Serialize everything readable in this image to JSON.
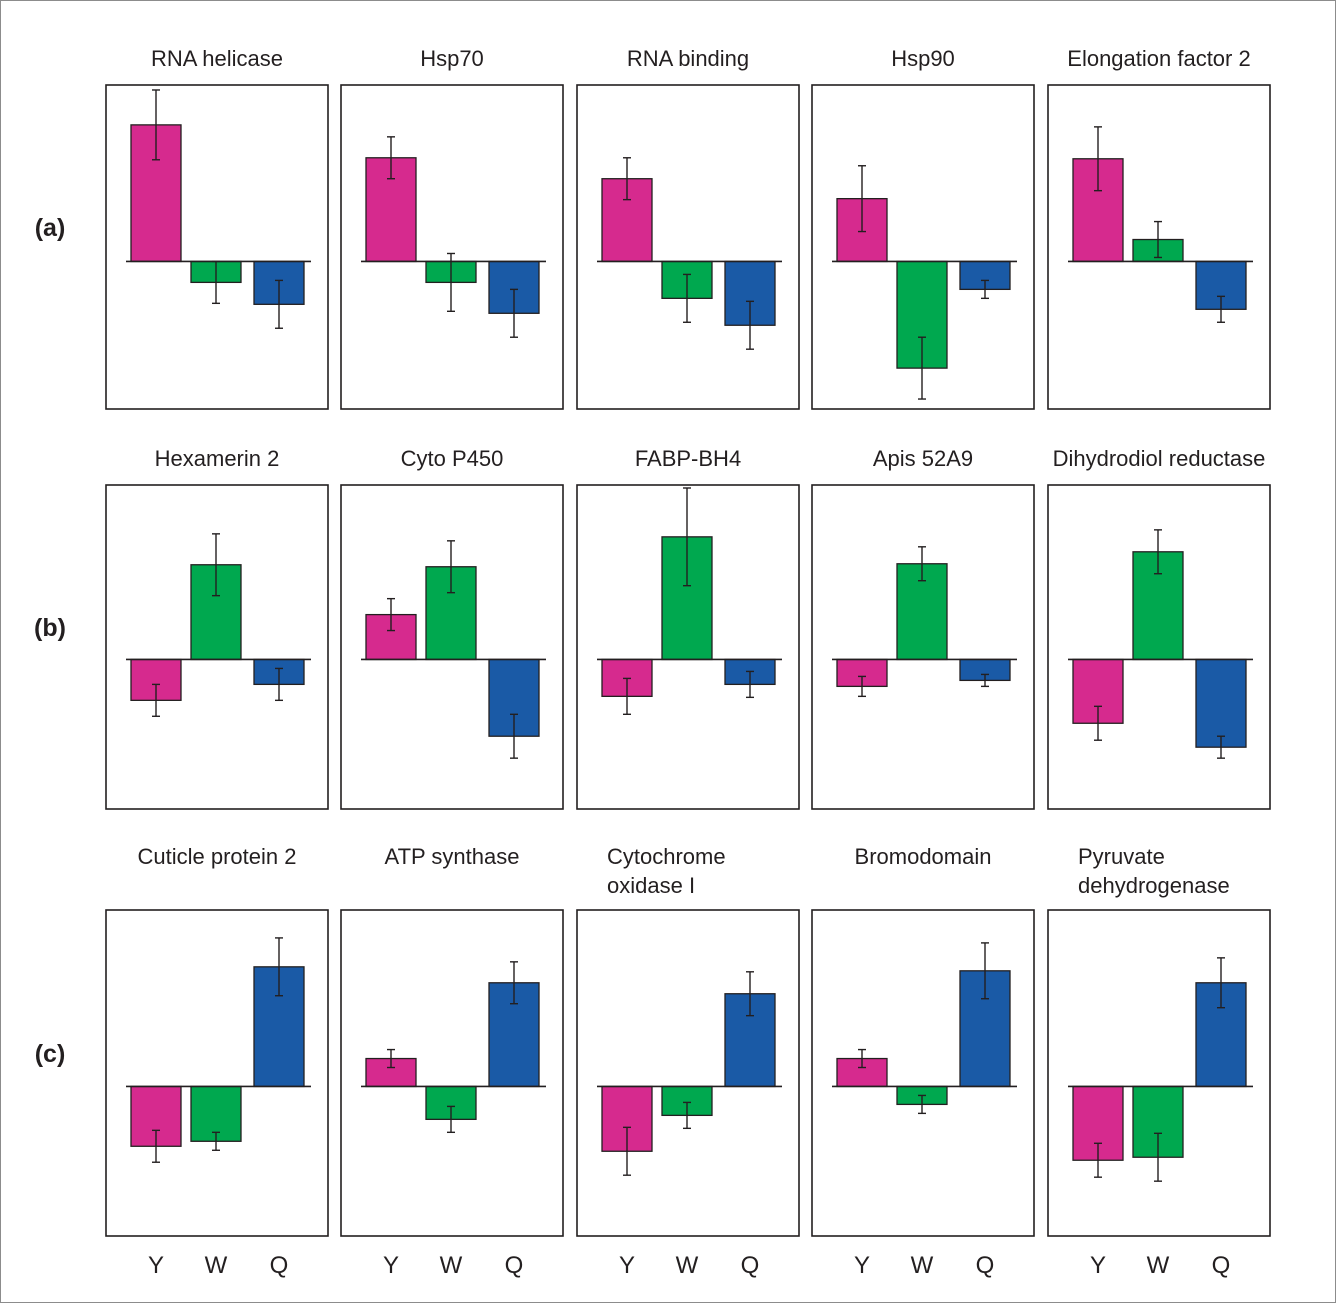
{
  "colors": {
    "Y": "#d62a8e",
    "W": "#00a84f",
    "Q": "#1a5aa6",
    "frame": "#231f20"
  },
  "x_labels": [
    "Y",
    "W",
    "Q"
  ],
  "chart_data": [
    {
      "row": "(a)",
      "type": "bar",
      "title": [
        "RNA helicase"
      ],
      "categories": [
        "Y",
        "W",
        "Q"
      ],
      "values": [
        137,
        -21,
        -43
      ],
      "errors": [
        35,
        21,
        24
      ],
      "ylim": [
        -148,
        177
      ],
      "grid": false
    },
    {
      "row": "(a)",
      "type": "bar",
      "title": [
        "Hsp70"
      ],
      "categories": [
        "Y",
        "W",
        "Q"
      ],
      "values": [
        104,
        -21,
        -52
      ],
      "errors": [
        21,
        29,
        24
      ],
      "ylim": [
        -148,
        177
      ],
      "grid": false
    },
    {
      "row": "(a)",
      "type": "bar",
      "title": [
        "RNA binding"
      ],
      "categories": [
        "Y",
        "W",
        "Q"
      ],
      "values": [
        83,
        -37,
        -64
      ],
      "errors": [
        21,
        24,
        24
      ],
      "ylim": [
        -148,
        177
      ],
      "grid": false
    },
    {
      "row": "(a)",
      "type": "bar",
      "title": [
        "Hsp90"
      ],
      "categories": [
        "Y",
        "W",
        "Q"
      ],
      "values": [
        63,
        -107,
        -28
      ],
      "errors": [
        33,
        31,
        9
      ],
      "ylim": [
        -148,
        177
      ],
      "grid": false
    },
    {
      "row": "(a)",
      "type": "bar",
      "title": [
        "Elongation factor 2"
      ],
      "categories": [
        "Y",
        "W",
        "Q"
      ],
      "values": [
        103,
        22,
        -48
      ],
      "errors": [
        32,
        18,
        13
      ],
      "ylim": [
        -148,
        177
      ],
      "grid": false
    },
    {
      "row": "(b)",
      "type": "bar",
      "title": [
        "Hexamerin 2"
      ],
      "categories": [
        "Y",
        "W",
        "Q"
      ],
      "values": [
        -41,
        95,
        -25
      ],
      "errors": [
        16,
        31,
        16
      ],
      "ylim": [
        -150,
        175
      ],
      "grid": false
    },
    {
      "row": "(b)",
      "type": "bar",
      "title": [
        "Cyto P450"
      ],
      "categories": [
        "Y",
        "W",
        "Q"
      ],
      "values": [
        45,
        93,
        -77
      ],
      "errors": [
        16,
        26,
        22
      ],
      "ylim": [
        -150,
        175
      ],
      "grid": false
    },
    {
      "row": "(b)",
      "type": "bar",
      "title": [
        "FABP-BH4"
      ],
      "categories": [
        "Y",
        "W",
        "Q"
      ],
      "values": [
        -37,
        123,
        -25
      ],
      "errors": [
        18,
        49,
        13
      ],
      "ylim": [
        -150,
        175
      ],
      "grid": false
    },
    {
      "row": "(b)",
      "type": "bar",
      "title": [
        "Apis 52A9"
      ],
      "categories": [
        "Y",
        "W",
        "Q"
      ],
      "values": [
        -27,
        96,
        -21
      ],
      "errors": [
        10,
        17,
        6
      ],
      "ylim": [
        -150,
        175
      ],
      "grid": false
    },
    {
      "row": "(b)",
      "type": "bar",
      "title": [
        "Dihydrodiol reductase"
      ],
      "categories": [
        "Y",
        "W",
        "Q"
      ],
      "values": [
        -64,
        108,
        -88
      ],
      "errors": [
        17,
        22,
        11
      ],
      "ylim": [
        -150,
        175
      ],
      "grid": false
    },
    {
      "row": "(c)",
      "type": "bar",
      "title": [
        "Cuticle protein 2"
      ],
      "categories": [
        "Y",
        "W",
        "Q"
      ],
      "values": [
        -60,
        -55,
        120
      ],
      "errors": [
        16,
        9,
        29
      ],
      "ylim": [
        -150,
        177
      ],
      "grid": false
    },
    {
      "row": "(c)",
      "type": "bar",
      "title": [
        "ATP synthase"
      ],
      "categories": [
        "Y",
        "W",
        "Q"
      ],
      "values": [
        28,
        -33,
        104
      ],
      "errors": [
        9,
        13,
        21
      ],
      "ylim": [
        -150,
        177
      ],
      "grid": false
    },
    {
      "row": "(c)",
      "type": "bar",
      "title": [
        "Cytochrome",
        "oxidase I"
      ],
      "categories": [
        "Y",
        "W",
        "Q"
      ],
      "values": [
        -65,
        -29,
        93
      ],
      "errors": [
        24,
        13,
        22
      ],
      "ylim": [
        -150,
        177
      ],
      "grid": false
    },
    {
      "row": "(c)",
      "type": "bar",
      "title": [
        "Bromodomain"
      ],
      "categories": [
        "Y",
        "W",
        "Q"
      ],
      "values": [
        28,
        -18,
        116
      ],
      "errors": [
        9,
        9,
        28
      ],
      "ylim": [
        -150,
        177
      ],
      "grid": false
    },
    {
      "row": "(c)",
      "type": "bar",
      "title": [
        "Pyruvate",
        "dehydrogenase"
      ],
      "categories": [
        "Y",
        "W",
        "Q"
      ],
      "values": [
        -74,
        -71,
        104
      ],
      "errors": [
        17,
        24,
        25
      ],
      "ylim": [
        -150,
        177
      ],
      "grid": false
    }
  ]
}
